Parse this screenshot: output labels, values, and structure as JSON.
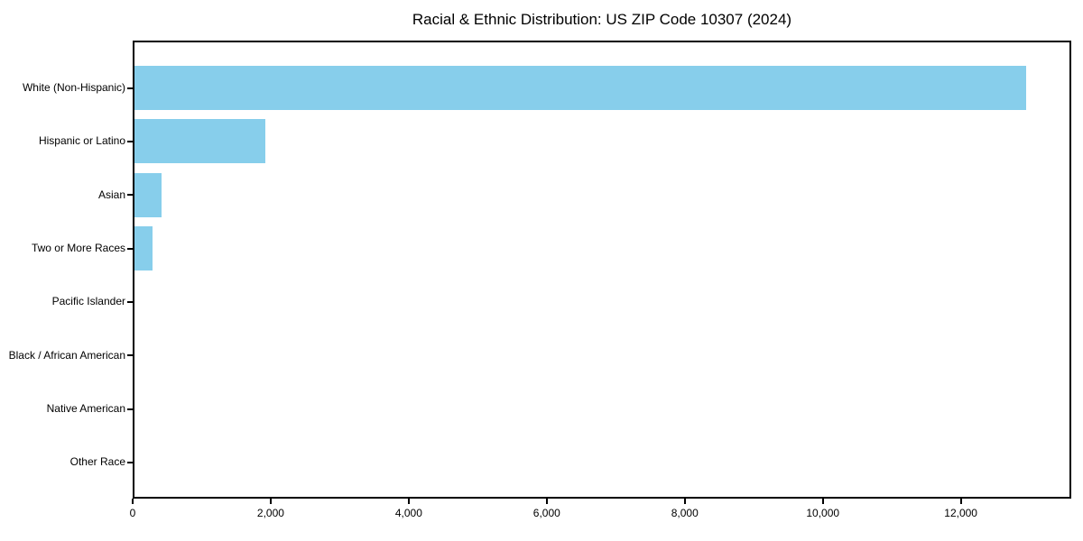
{
  "figure": {
    "background": "#ffffff"
  },
  "chart_data": {
    "type": "bar",
    "orientation": "horizontal",
    "title": "Racial & Ethnic Distribution: US ZIP Code 10307 (2024)",
    "categories": [
      "White (Non-Hispanic)",
      "Hispanic or Latino",
      "Asian",
      "Two or More Races",
      "Pacific Islander",
      "Black / African American",
      "Native American",
      "Other Race"
    ],
    "values": [
      12940,
      1920,
      420,
      290,
      0,
      0,
      0,
      0
    ],
    "xlabel": "",
    "ylabel": "",
    "xlim": [
      0,
      13600
    ],
    "x_ticks": [
      0,
      2000,
      4000,
      6000,
      8000,
      10000,
      12000
    ],
    "x_tick_labels": [
      "0",
      "2,000",
      "4,000",
      "6,000",
      "8,000",
      "10,000",
      "12,000"
    ],
    "bar_color": "#87CEEB",
    "axis_color": "#000000",
    "background": "#ffffff",
    "grid": false,
    "legend": "none"
  }
}
